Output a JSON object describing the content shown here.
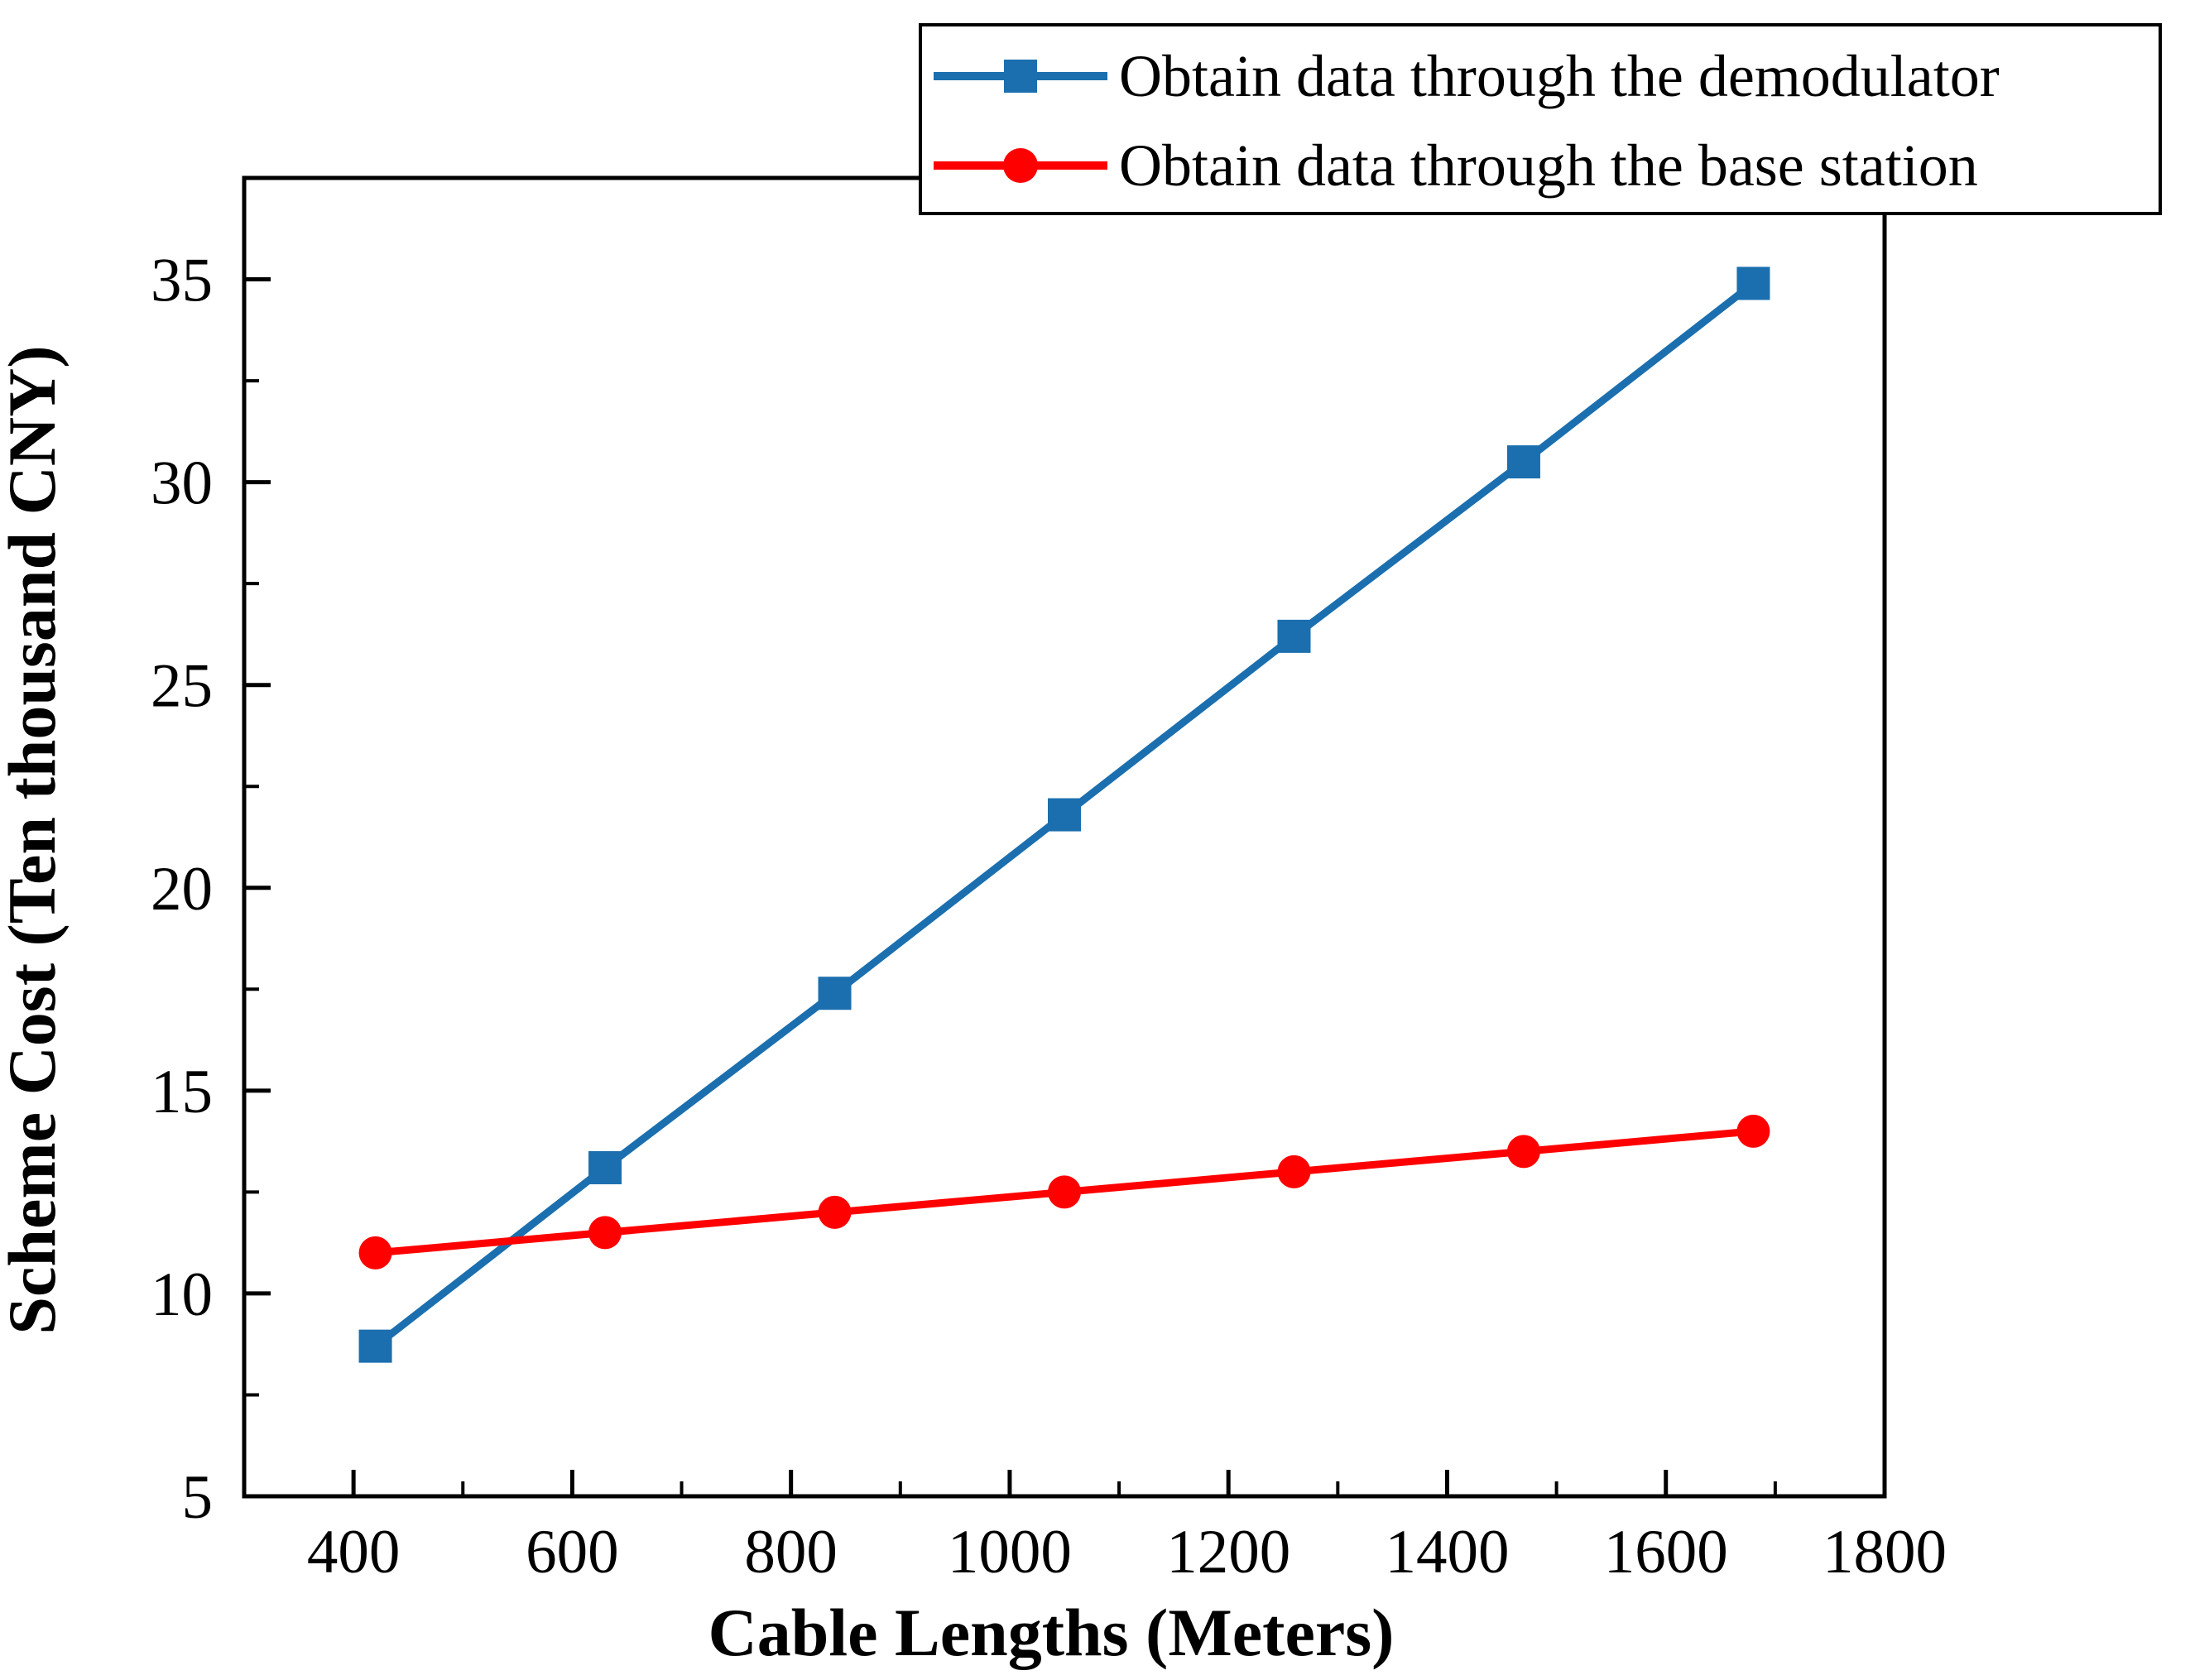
{
  "chart_data": {
    "type": "line",
    "title": "",
    "xlabel": "Cable Lengths (Meters)",
    "ylabel": "Scheme Cost (Ten thousand CNY)",
    "x": [
      420,
      630,
      840,
      1050,
      1260,
      1470,
      1680
    ],
    "series": [
      {
        "name": "Obtain data through the demodulator",
        "color": "#1B6FAF",
        "marker": "square",
        "values": [
          8.7,
          13.1,
          17.4,
          21.8,
          26.2,
          30.5,
          34.9
        ]
      },
      {
        "name": "Obtain data through the base station",
        "color": "#FF0000",
        "marker": "circle",
        "values": [
          11.0,
          11.5,
          12.0,
          12.5,
          13.0,
          13.5,
          14.0
        ]
      }
    ],
    "xlim": [
      300,
      1800
    ],
    "ylim": [
      5,
      37.5
    ],
    "x_major_ticks": [
      400,
      600,
      800,
      1000,
      1200,
      1400,
      1600,
      1800
    ],
    "x_minor_step": 100,
    "y_major_ticks": [
      5,
      10,
      15,
      20,
      25,
      30,
      35
    ],
    "y_minor_step": 2.5,
    "grid": false,
    "legend_position": "top-right",
    "frame_color": "#000000",
    "background_color": "#ffffff"
  }
}
